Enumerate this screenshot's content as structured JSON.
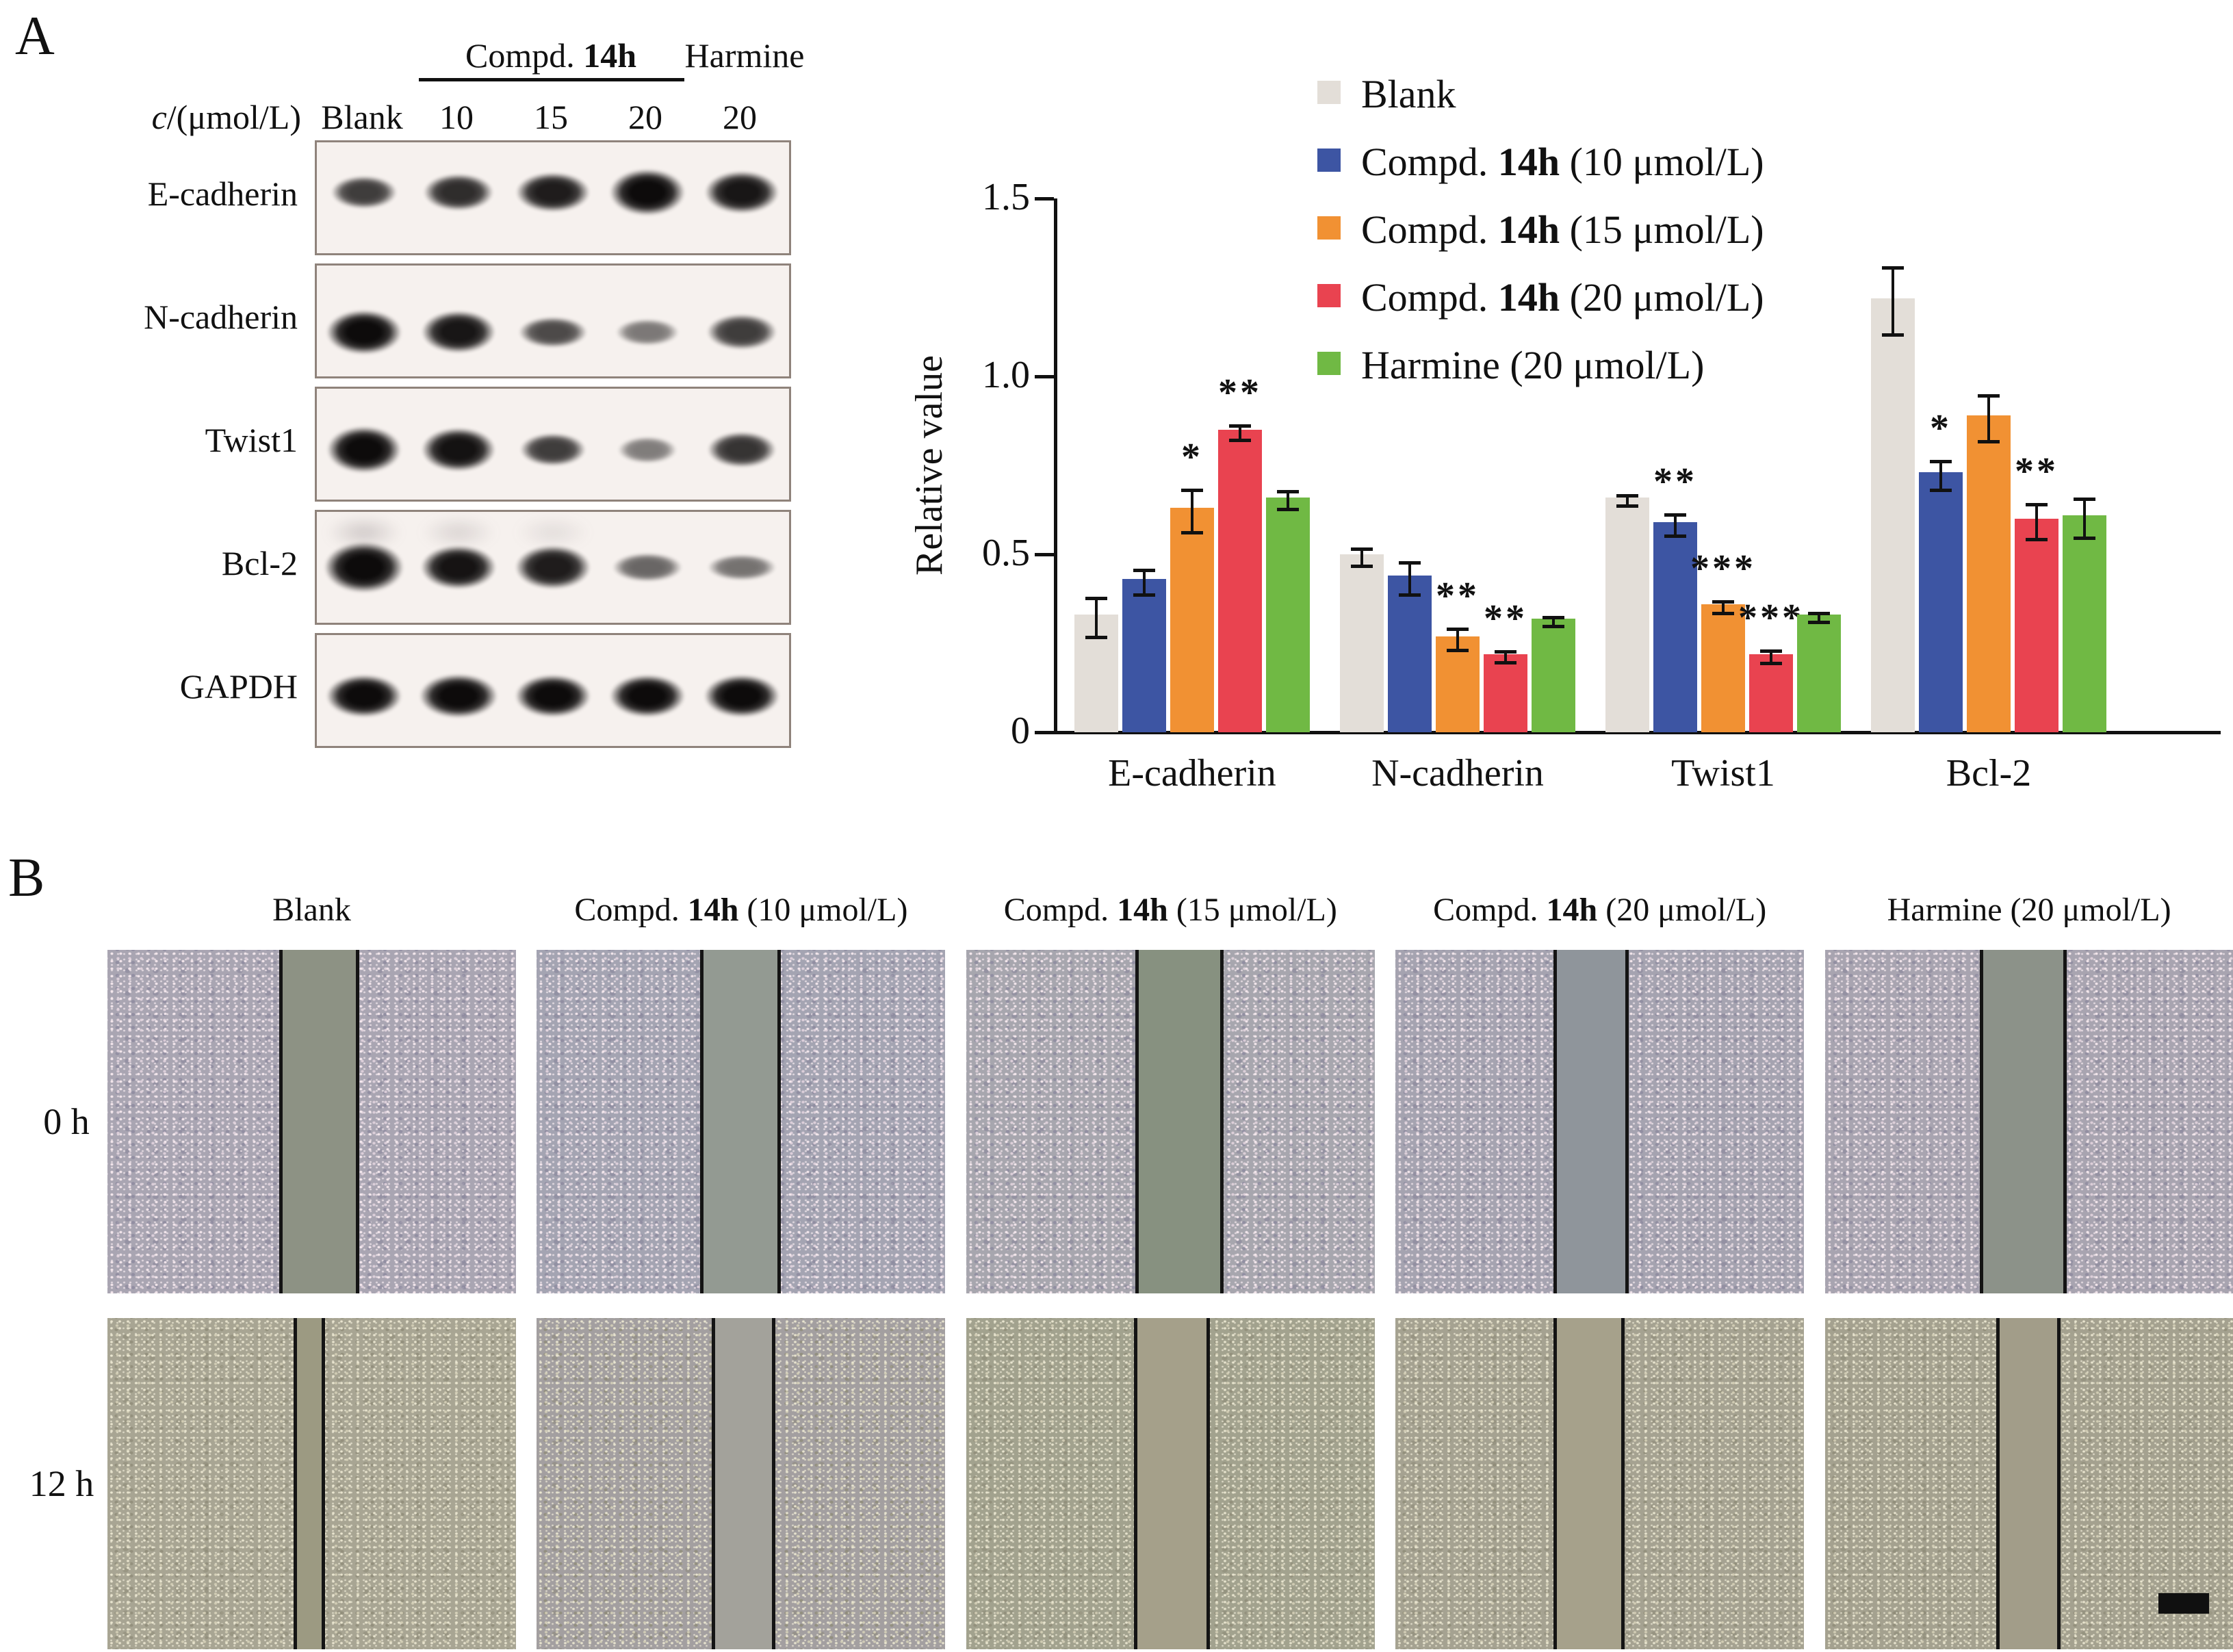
{
  "panel_a": {
    "label": "A",
    "blot": {
      "conc_label": "c/(μmol/L)",
      "group_header": {
        "compound": "Compd. 14h",
        "harmine": "Harmine"
      },
      "lane_labels": [
        "Blank",
        "10",
        "15",
        "20",
        "20"
      ],
      "box_bg": "#f6f1ee",
      "box_border": "#8f837b",
      "rows": [
        {
          "label": "E-cadherin",
          "band_y": 0.45,
          "bands": [
            {
              "o": 0.78,
              "w": 0.7,
              "h": 0.3
            },
            {
              "o": 0.85,
              "w": 0.74,
              "h": 0.33
            },
            {
              "o": 0.92,
              "w": 0.78,
              "h": 0.36
            },
            {
              "o": 1.0,
              "w": 0.8,
              "h": 0.42
            },
            {
              "o": 0.95,
              "w": 0.78,
              "h": 0.38
            }
          ],
          "smudges": [
            0,
            0,
            0,
            0,
            0
          ]
        },
        {
          "label": "N-cadherin",
          "band_y": 0.6,
          "bands": [
            {
              "o": 1.0,
              "w": 0.8,
              "h": 0.4
            },
            {
              "o": 0.95,
              "w": 0.78,
              "h": 0.38
            },
            {
              "o": 0.72,
              "w": 0.72,
              "h": 0.28
            },
            {
              "o": 0.52,
              "w": 0.66,
              "h": 0.24
            },
            {
              "o": 0.78,
              "w": 0.74,
              "h": 0.32
            }
          ],
          "smudges": [
            0,
            0,
            0,
            0,
            0
          ]
        },
        {
          "label": "Twist1",
          "band_y": 0.55,
          "bands": [
            {
              "o": 1.0,
              "w": 0.78,
              "h": 0.42
            },
            {
              "o": 0.97,
              "w": 0.78,
              "h": 0.4
            },
            {
              "o": 0.78,
              "w": 0.7,
              "h": 0.3
            },
            {
              "o": 0.5,
              "w": 0.62,
              "h": 0.24
            },
            {
              "o": 0.82,
              "w": 0.72,
              "h": 0.32
            }
          ],
          "smudges": [
            0,
            0,
            0,
            0,
            0
          ]
        },
        {
          "label": "Bcl-2",
          "band_y": 0.5,
          "bands": [
            {
              "o": 1.0,
              "w": 0.84,
              "h": 0.46
            },
            {
              "o": 0.96,
              "w": 0.8,
              "h": 0.4
            },
            {
              "o": 0.92,
              "w": 0.8,
              "h": 0.4
            },
            {
              "o": 0.6,
              "w": 0.74,
              "h": 0.26
            },
            {
              "o": 0.55,
              "w": 0.72,
              "h": 0.24
            }
          ],
          "smudges": [
            0.3,
            0.22,
            0.15,
            0,
            0
          ]
        },
        {
          "label": "GAPDH",
          "band_y": 0.55,
          "bands": [
            {
              "o": 1.0,
              "w": 0.8,
              "h": 0.38
            },
            {
              "o": 1.0,
              "w": 0.82,
              "h": 0.4
            },
            {
              "o": 1.0,
              "w": 0.8,
              "h": 0.38
            },
            {
              "o": 1.0,
              "w": 0.8,
              "h": 0.38
            },
            {
              "o": 1.0,
              "w": 0.8,
              "h": 0.38
            }
          ],
          "smudges": [
            0,
            0,
            0,
            0,
            0
          ]
        }
      ]
    }
  },
  "chart_data": {
    "type": "bar",
    "title": "",
    "xlabel": "",
    "ylabel": "Relative value",
    "ylim": [
      0,
      1.5
    ],
    "yticks": [
      {
        "v": 0,
        "label": "0"
      },
      {
        "v": 0.5,
        "label": "0.5"
      },
      {
        "v": 1.0,
        "label": "1.0"
      },
      {
        "v": 1.5,
        "label": "1.5"
      }
    ],
    "grid": false,
    "legend_position": "top-right",
    "categories": [
      "E-cadherin",
      "N-cadherin",
      "Twist1",
      "Bcl-2"
    ],
    "series": [
      {
        "name": "Blank",
        "color": "#e3ded8",
        "values": [
          0.33,
          0.5,
          0.66,
          1.22
        ],
        "errors": [
          0.05,
          0.02,
          0.01,
          0.09
        ],
        "sig": [
          "",
          "",
          "",
          ""
        ]
      },
      {
        "name": "Compd. 14h (10 μmol/L)",
        "color": "#3d55a3",
        "values": [
          0.43,
          0.44,
          0.59,
          0.73
        ],
        "errors": [
          0.03,
          0.04,
          0.025,
          0.035
        ],
        "sig": [
          "",
          "",
          "**",
          "*"
        ]
      },
      {
        "name": "Compd. 14h (15 μmol/L)",
        "color": "#f19133",
        "values": [
          0.63,
          0.27,
          0.36,
          0.89
        ],
        "errors": [
          0.055,
          0.025,
          0.012,
          0.06
        ],
        "sig": [
          "*",
          "**",
          "***",
          ""
        ]
      },
      {
        "name": "Compd. 14h (20 μmol/L)",
        "color": "#e94350",
        "values": [
          0.85,
          0.22,
          0.22,
          0.6
        ],
        "errors": [
          0.015,
          0.01,
          0.012,
          0.045
        ],
        "sig": [
          "**",
          "**",
          "***",
          "**"
        ]
      },
      {
        "name": "Harmine (20 μmol/L)",
        "color": "#70b944",
        "values": [
          0.66,
          0.32,
          0.33,
          0.61
        ],
        "errors": [
          0.02,
          0.006,
          0.006,
          0.05
        ],
        "sig": [
          "",
          "",
          "",
          ""
        ]
      }
    ]
  },
  "panel_b": {
    "label": "B",
    "row_labels": [
      "0 h",
      "12 h"
    ],
    "columns": [
      "Blank",
      "Compd. 14h (10 μmol/L)",
      "Compd. 14h (15 μmol/L)",
      "Compd. 14h (20 μmol/L)",
      "Harmine (20 μmol/L)"
    ],
    "images": {
      "row_0h": [
        {
          "base": "#a9a5b2",
          "gap_color": "#8d9284",
          "gap_left": 0.42,
          "gap_width": 0.18
        },
        {
          "base": "#a4a4b2",
          "gap_color": "#939a92",
          "gap_left": 0.4,
          "gap_width": 0.18
        },
        {
          "base": "#a7a6ae",
          "gap_color": "#879180",
          "gap_left": 0.414,
          "gap_width": 0.2
        },
        {
          "base": "#a5a3b0",
          "gap_color": "#8f959b",
          "gap_left": 0.386,
          "gap_width": 0.168
        },
        {
          "base": "#a8a4b0",
          "gap_color": "#8c9289",
          "gap_left": 0.38,
          "gap_width": 0.195
        }
      ],
      "row_12h": [
        {
          "base": "#a8a593",
          "gap_color": "#9c9a82",
          "gap_left": 0.456,
          "gap_width": 0.06
        },
        {
          "base": "#a39fa0",
          "gap_color": "#a3a29b",
          "gap_left": 0.428,
          "gap_width": 0.14
        },
        {
          "base": "#a2a28e",
          "gap_color": "#a5a08a",
          "gap_left": 0.41,
          "gap_width": 0.17
        },
        {
          "base": "#a5a291",
          "gap_color": "#a6a18b",
          "gap_left": 0.386,
          "gap_width": 0.158
        },
        {
          "base": "#a4a18f",
          "gap_color": "#a29d89",
          "gap_left": 0.42,
          "gap_width": 0.14,
          "scale_bar": true
        }
      ]
    }
  }
}
